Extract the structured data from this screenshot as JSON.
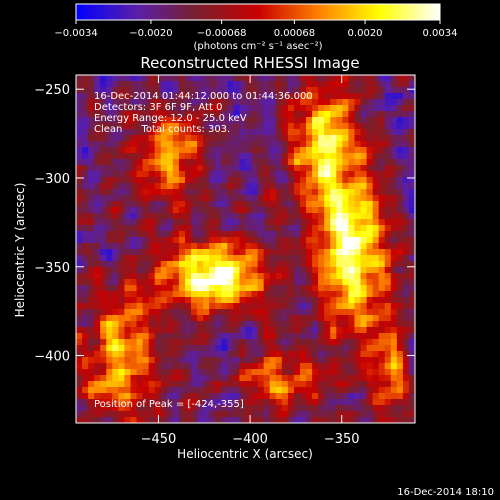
{
  "chart_data": {
    "type": "heatmap",
    "title": "Reconstructed RHESSI Image",
    "xlabel": "Heliocentric X (arcsec)",
    "ylabel": "Heliocentric Y (arcsec)",
    "xlim": [
      -495,
      -310
    ],
    "ylim": [
      -438,
      -242
    ],
    "x_ticks": [
      -450,
      -400,
      -350
    ],
    "y_ticks": [
      -250,
      -300,
      -350,
      -400
    ],
    "x_tick_labels": [
      "−450",
      "−400",
      "−350"
    ],
    "y_tick_labels": [
      "−250",
      "−300",
      "−350",
      "−400"
    ],
    "colorbar": {
      "min": -0.0034,
      "max": 0.0034,
      "ticks": [
        -0.0034,
        -0.002,
        -0.00068,
        0.00068,
        0.002,
        0.0034
      ],
      "tick_labels": [
        "−0.0034",
        "−0.0020",
        "−0.00068",
        "0.00068",
        "0.0020",
        "0.0034"
      ],
      "unit_label": "(photons cm⁻² s⁻¹ asec⁻²)",
      "colors": [
        "#0000ff",
        "#5a1fa8",
        "#7a1f2c",
        "#c80000",
        "#ff8000",
        "#ffff00",
        "#ffffff"
      ]
    },
    "annotations": {
      "time": "16-Dec-2014 01:44:12.000 to 01:44:36.000",
      "detectors": "Detectors: 3F 6F 9F, Att 0",
      "energy": "Energy Range: 12.0 - 25.0 keV",
      "clean": "Clean      Total counts: 303.",
      "peak": "Position of Peak = [-424,-355]"
    },
    "peak_position": [
      -424,
      -355
    ],
    "sources": [
      {
        "x": -420,
        "y": -355,
        "amplitude": 1.0,
        "sx": 20,
        "sy": 14
      },
      {
        "x": -345,
        "y": -340,
        "amplitude": 0.9,
        "sx": 14,
        "sy": 32
      },
      {
        "x": -360,
        "y": -280,
        "amplitude": 0.75,
        "sx": 13,
        "sy": 22
      },
      {
        "x": -445,
        "y": -285,
        "amplitude": 0.6,
        "sx": 14,
        "sy": 18
      },
      {
        "x": -470,
        "y": -400,
        "amplitude": 0.7,
        "sx": 14,
        "sy": 26
      },
      {
        "x": -385,
        "y": -415,
        "amplitude": 0.55,
        "sx": 16,
        "sy": 12
      },
      {
        "x": -325,
        "y": -410,
        "amplitude": 0.5,
        "sx": 8,
        "sy": 22
      }
    ],
    "footer_timestamp": "16-Dec-2014 18:10"
  }
}
